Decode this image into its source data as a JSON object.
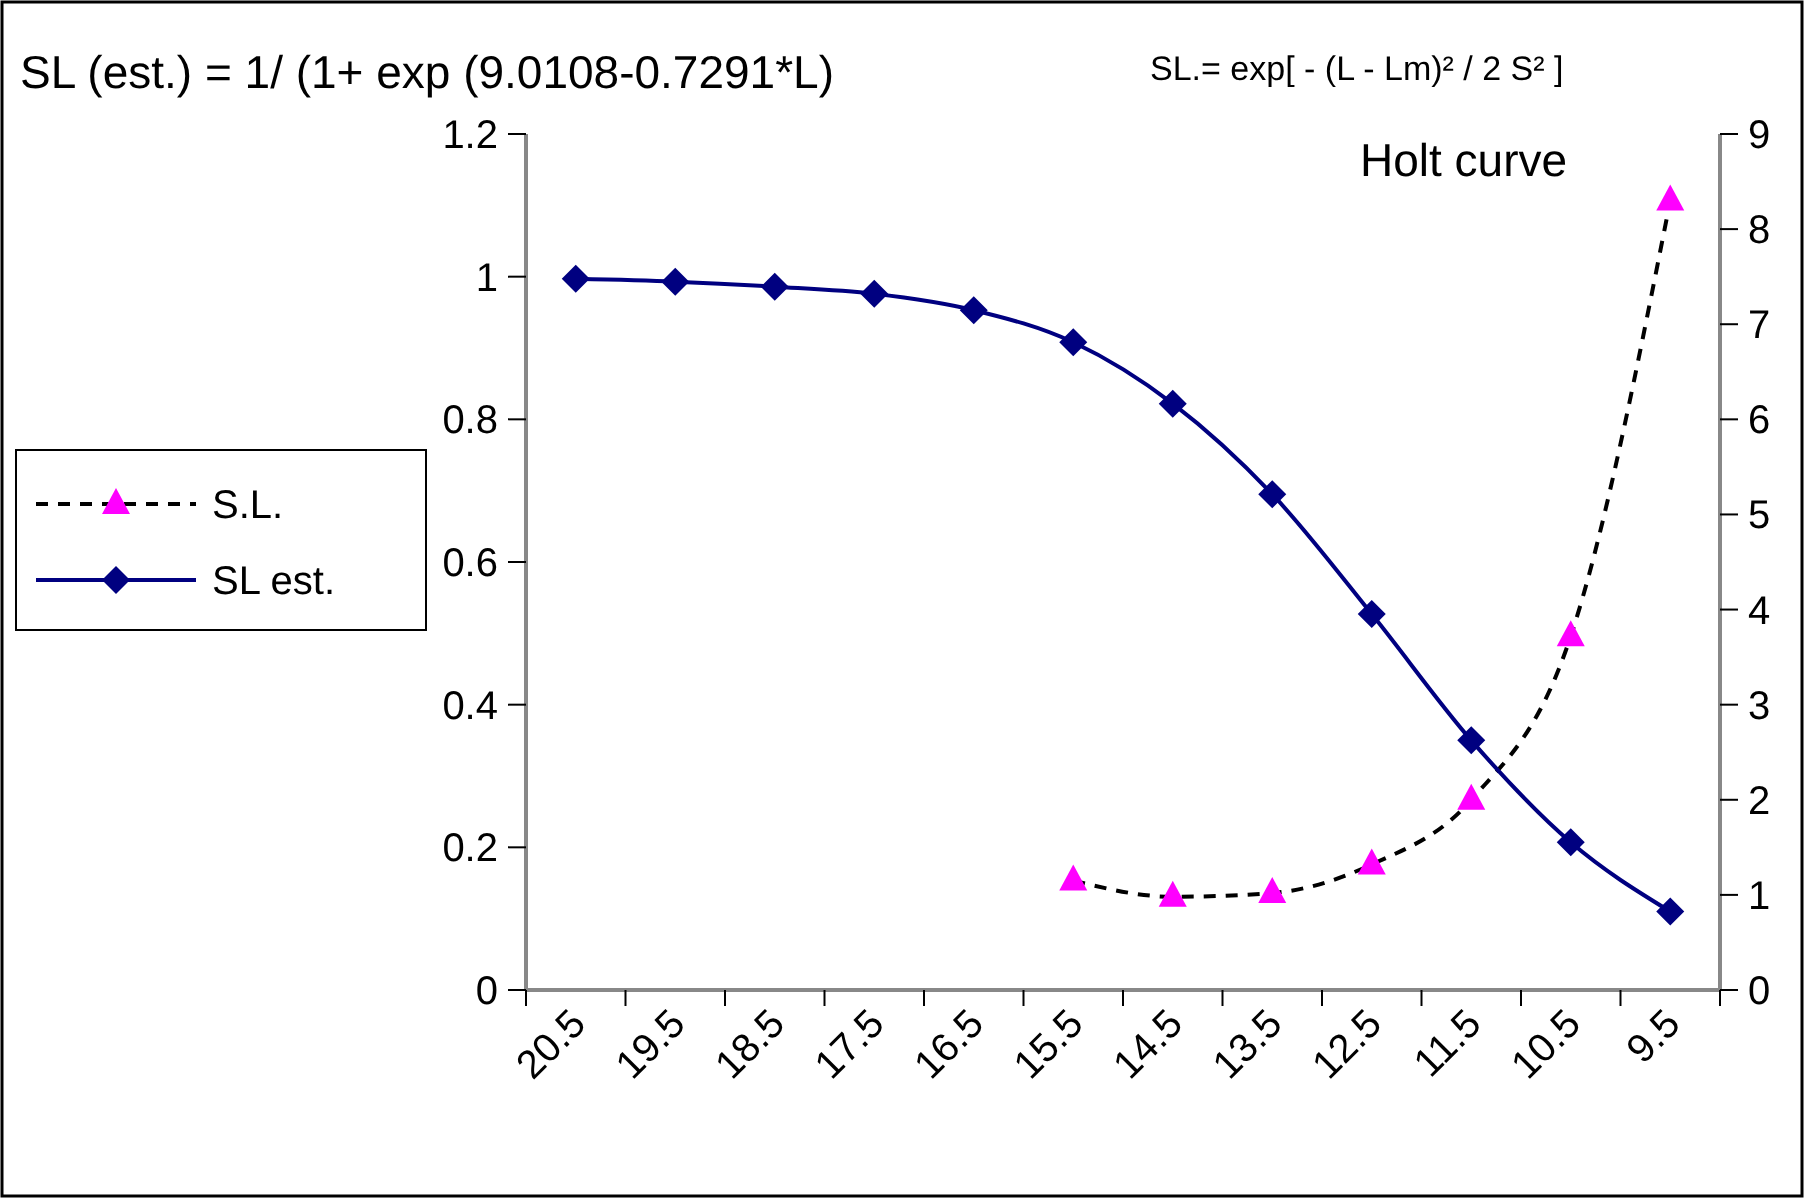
{
  "chart_data": {
    "type": "line",
    "title": "SL (est.) = 1/ (1+ exp (9.0108-0.7291*L)",
    "annotations": [
      "SL.= exp[ - (L - Lm)² / 2 S² ]",
      "Holt curve"
    ],
    "categories": [
      "20.5",
      "19.5",
      "18.5",
      "17.5",
      "16.5",
      "15.5",
      "14.5",
      "13.5",
      "12.5",
      "11.5",
      "10.5",
      "9.5"
    ],
    "series": [
      {
        "name": "S.L.",
        "color": "#ff00ff",
        "axis": "y2",
        "marker": "triangle",
        "line_style": "dashed",
        "values": [
          null,
          null,
          null,
          null,
          null,
          1.15,
          0.98,
          1.02,
          1.32,
          2.0,
          3.72,
          8.3
        ]
      },
      {
        "name": "SL est.",
        "color": "#000080",
        "marker": "diamond",
        "line_style": "solid",
        "values": [
          0.997,
          0.993,
          0.986,
          0.976,
          0.953,
          0.908,
          0.822,
          0.695,
          0.527,
          0.35,
          0.207,
          0.11
        ]
      }
    ],
    "ylim": [
      0,
      1.2
    ],
    "yticks": [
      0,
      0.2,
      0.4,
      0.6,
      0.8,
      1,
      1.2
    ],
    "y2lim": [
      0,
      9
    ],
    "y2ticks": [
      0,
      1,
      2,
      3,
      4,
      5,
      6,
      7,
      8,
      9
    ],
    "grid": false,
    "legend": "left"
  }
}
